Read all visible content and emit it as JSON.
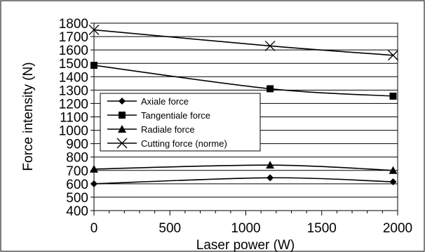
{
  "chart_data": {
    "type": "line",
    "xlabel": "Laser power (W)",
    "ylabel": "Force intensity (N)",
    "xlim": [
      0,
      2000
    ],
    "ylim": [
      400,
      1800
    ],
    "x_ticks": [
      0,
      500,
      1000,
      1500,
      2000
    ],
    "y_ticks": [
      400,
      500,
      600,
      700,
      800,
      900,
      1000,
      1100,
      1200,
      1300,
      1400,
      1500,
      1600,
      1700,
      1800
    ],
    "grid": "horizontal",
    "legend_position": "center-left",
    "series": [
      {
        "name": "Axiale force",
        "marker": "diamond",
        "x": [
          0,
          1160,
          1970
        ],
        "y": [
          600,
          645,
          615
        ]
      },
      {
        "name": "Tangentiale force",
        "marker": "square",
        "x": [
          0,
          1160,
          1970
        ],
        "y": [
          1485,
          1310,
          1255
        ]
      },
      {
        "name": "Radiale force",
        "marker": "triangle",
        "x": [
          0,
          1160,
          1970
        ],
        "y": [
          710,
          740,
          700
        ]
      },
      {
        "name": "Cutting force (norme)",
        "marker": "x",
        "x": [
          0,
          1160,
          1970
        ],
        "y": [
          1750,
          1630,
          1560
        ]
      }
    ]
  }
}
